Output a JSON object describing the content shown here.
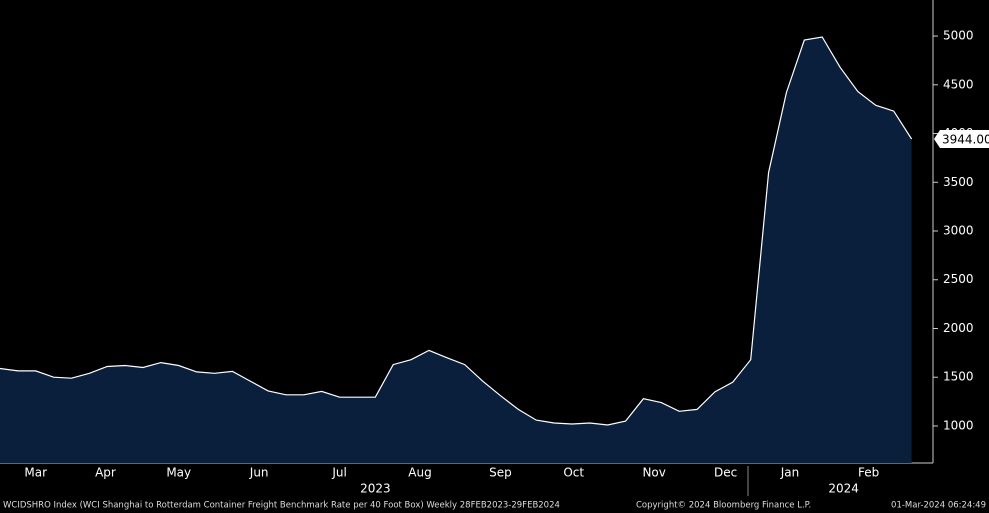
{
  "chart_data": {
    "type": "area",
    "values": [
      1590,
      1565,
      1565,
      1500,
      1490,
      1540,
      1610,
      1620,
      1600,
      1650,
      1620,
      1555,
      1540,
      1560,
      1460,
      1360,
      1320,
      1320,
      1355,
      1295,
      1295,
      1295,
      1630,
      1680,
      1775,
      1700,
      1630,
      1460,
      1310,
      1170,
      1060,
      1030,
      1020,
      1030,
      1010,
      1050,
      1280,
      1240,
      1150,
      1170,
      1350,
      1450,
      1680,
      3600,
      4420,
      4960,
      4990,
      4680,
      4430,
      4290,
      4230,
      3944
    ],
    "last_value_label": "3944.00",
    "color": "#0a1f3c",
    "line_color": "#ffffff",
    "xlim": [
      0,
      52.2
    ],
    "xticks": [
      {
        "value": 2.0,
        "label": "Mar"
      },
      {
        "value": 5.9,
        "label": "Apr"
      },
      {
        "value": 10.0,
        "label": "May"
      },
      {
        "value": 14.5,
        "label": "Jun"
      },
      {
        "value": 19.0,
        "label": "Jul"
      },
      {
        "value": 23.5,
        "label": "Aug"
      },
      {
        "value": 28.0,
        "label": "Sep"
      },
      {
        "value": 32.1,
        "label": "Oct"
      },
      {
        "value": 36.6,
        "label": "Nov"
      },
      {
        "value": 40.6,
        "label": "Dec"
      },
      {
        "value": 44.2,
        "label": "Jan"
      },
      {
        "value": 48.6,
        "label": "Feb"
      }
    ],
    "year_labels": [
      {
        "value": 21.0,
        "label": "2023"
      },
      {
        "value": 47.2,
        "label": "2024"
      }
    ],
    "ylim": [
      620,
      5370
    ],
    "yticks": [
      1000,
      1500,
      2000,
      2500,
      3000,
      3500,
      4000,
      4500,
      5000
    ],
    "footer_left": "WCIDSHRO Index (WCI Shanghai to Rotterdam Container Freight Benchmark Rate per 40 Foot Box)  Weekly 28FEB2023-29FEB2024",
    "footer_center": "Copyright© 2024 Bloomberg Finance L.P.",
    "footer_right": "01-Mar-2024 06:24:49"
  }
}
